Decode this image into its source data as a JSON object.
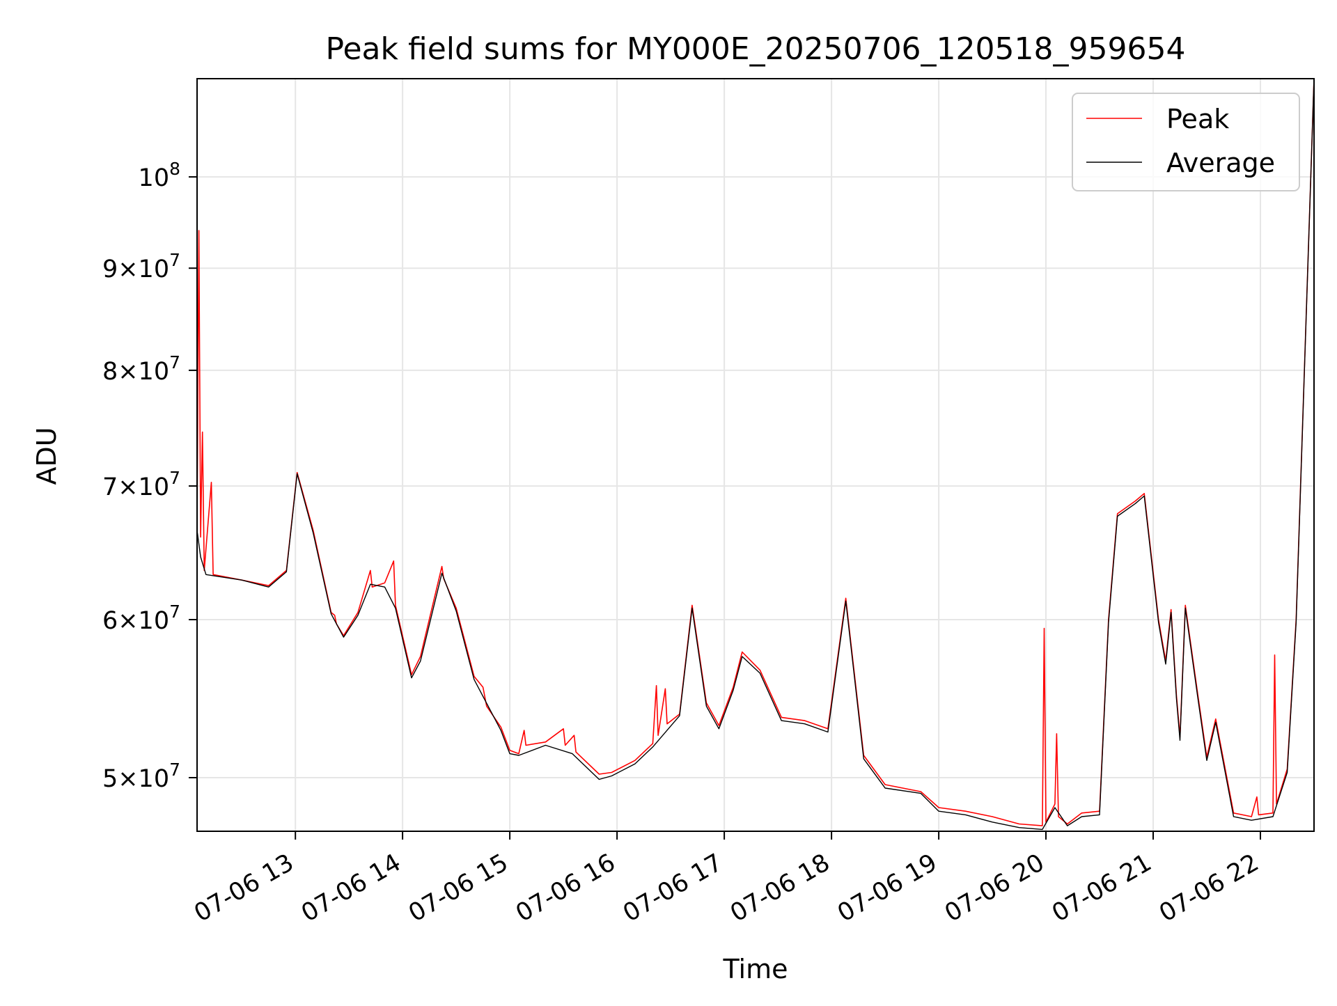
{
  "chart_data": {
    "type": "line",
    "title": "Peak field sums for MY000E_20250706_120518_959654",
    "xlabel": "Time",
    "ylabel": "ADU",
    "y_scale": "log",
    "grid": true,
    "legend_position": "top-right",
    "xlim": [
      "2025-07-06 12:05",
      "2025-07-06 22:30"
    ],
    "ylim": [
      47000000,
      112000000
    ],
    "x_ticks": [
      {
        "value": "2025-07-06 13:00",
        "label": "07-06 13"
      },
      {
        "value": "2025-07-06 14:00",
        "label": "07-06 14"
      },
      {
        "value": "2025-07-06 15:00",
        "label": "07-06 15"
      },
      {
        "value": "2025-07-06 16:00",
        "label": "07-06 16"
      },
      {
        "value": "2025-07-06 17:00",
        "label": "07-06 17"
      },
      {
        "value": "2025-07-06 18:00",
        "label": "07-06 18"
      },
      {
        "value": "2025-07-06 19:00",
        "label": "07-06 19"
      },
      {
        "value": "2025-07-06 20:00",
        "label": "07-06 20"
      },
      {
        "value": "2025-07-06 21:00",
        "label": "07-06 21"
      },
      {
        "value": "2025-07-06 22:00",
        "label": "07-06 22"
      }
    ],
    "y_ticks": [
      {
        "value": 50000000,
        "mantissa": "5",
        "exponent": "7"
      },
      {
        "value": 60000000,
        "mantissa": "6",
        "exponent": "7"
      },
      {
        "value": 70000000,
        "mantissa": "7",
        "exponent": "7"
      },
      {
        "value": 80000000,
        "mantissa": "8",
        "exponent": "7"
      },
      {
        "value": 90000000,
        "mantissa": "9",
        "exponent": "7"
      },
      {
        "value": 100000000,
        "mantissa": "",
        "exponent": "8"
      }
    ],
    "series": [
      {
        "name": "Peak",
        "color": "#ff0000",
        "points": [
          [
            "2025-07-06 12:05",
            67000000
          ],
          [
            "2025-07-06 12:06",
            94000000
          ],
          [
            "2025-07-06 12:07",
            66000000
          ],
          [
            "2025-07-06 12:08",
            74500000
          ],
          [
            "2025-07-06 12:09",
            63500000
          ],
          [
            "2025-07-06 12:13",
            70300000
          ],
          [
            "2025-07-06 12:14",
            63200000
          ],
          [
            "2025-07-06 12:30",
            62800000
          ],
          [
            "2025-07-06 12:45",
            62400000
          ],
          [
            "2025-07-06 12:55",
            63500000
          ],
          [
            "2025-07-06 13:01",
            71100000
          ],
          [
            "2025-07-06 13:10",
            66500000
          ],
          [
            "2025-07-06 13:20",
            60500000
          ],
          [
            "2025-07-06 13:22",
            60300000
          ],
          [
            "2025-07-06 13:23",
            59700000
          ],
          [
            "2025-07-06 13:27",
            58900000
          ],
          [
            "2025-07-06 13:35",
            60500000
          ],
          [
            "2025-07-06 13:42",
            63500000
          ],
          [
            "2025-07-06 13:43",
            62300000
          ],
          [
            "2025-07-06 13:50",
            62600000
          ],
          [
            "2025-07-06 13:55",
            64200000
          ],
          [
            "2025-07-06 13:56",
            61000000
          ],
          [
            "2025-07-06 14:05",
            56300000
          ],
          [
            "2025-07-06 14:10",
            57500000
          ],
          [
            "2025-07-06 14:22",
            63800000
          ],
          [
            "2025-07-06 14:23",
            62900000
          ],
          [
            "2025-07-06 14:30",
            60800000
          ],
          [
            "2025-07-06 14:40",
            56200000
          ],
          [
            "2025-07-06 14:45",
            55500000
          ],
          [
            "2025-07-06 14:47",
            54300000
          ],
          [
            "2025-07-06 14:55",
            53000000
          ],
          [
            "2025-07-06 15:00",
            51600000
          ],
          [
            "2025-07-06 15:05",
            51400000
          ],
          [
            "2025-07-06 15:08",
            52800000
          ],
          [
            "2025-07-06 15:09",
            51900000
          ],
          [
            "2025-07-06 15:20",
            52100000
          ],
          [
            "2025-07-06 15:30",
            52900000
          ],
          [
            "2025-07-06 15:31",
            51900000
          ],
          [
            "2025-07-06 15:36",
            52500000
          ],
          [
            "2025-07-06 15:37",
            51500000
          ],
          [
            "2025-07-06 15:50",
            50200000
          ],
          [
            "2025-07-06 15:57",
            50300000
          ],
          [
            "2025-07-06 16:10",
            51000000
          ],
          [
            "2025-07-06 16:20",
            52000000
          ],
          [
            "2025-07-06 16:22",
            55600000
          ],
          [
            "2025-07-06 16:23",
            52500000
          ],
          [
            "2025-07-06 16:27",
            55400000
          ],
          [
            "2025-07-06 16:28",
            53200000
          ],
          [
            "2025-07-06 16:35",
            53800000
          ],
          [
            "2025-07-06 16:42",
            61000000
          ],
          [
            "2025-07-06 16:50",
            54500000
          ],
          [
            "2025-07-06 16:57",
            53100000
          ],
          [
            "2025-07-06 17:05",
            55500000
          ],
          [
            "2025-07-06 17:10",
            57800000
          ],
          [
            "2025-07-06 17:20",
            56600000
          ],
          [
            "2025-07-06 17:32",
            53600000
          ],
          [
            "2025-07-06 17:45",
            53400000
          ],
          [
            "2025-07-06 17:58",
            52900000
          ],
          [
            "2025-07-06 18:08",
            61500000
          ],
          [
            "2025-07-06 18:18",
            51300000
          ],
          [
            "2025-07-06 18:30",
            49600000
          ],
          [
            "2025-07-06 18:50",
            49200000
          ],
          [
            "2025-07-06 19:00",
            48300000
          ],
          [
            "2025-07-06 19:15",
            48100000
          ],
          [
            "2025-07-06 19:30",
            47800000
          ],
          [
            "2025-07-06 19:45",
            47400000
          ],
          [
            "2025-07-06 19:58",
            47300000
          ],
          [
            "2025-07-06 19:59",
            59400000
          ],
          [
            "2025-07-06 20:00",
            47500000
          ],
          [
            "2025-07-06 20:05",
            48500000
          ],
          [
            "2025-07-06 20:06",
            52600000
          ],
          [
            "2025-07-06 20:07",
            47800000
          ],
          [
            "2025-07-06 20:12",
            47400000
          ],
          [
            "2025-07-06 20:20",
            48000000
          ],
          [
            "2025-07-06 20:30",
            48100000
          ],
          [
            "2025-07-06 20:35",
            60000000
          ],
          [
            "2025-07-06 20:40",
            67800000
          ],
          [
            "2025-07-06 20:50",
            68800000
          ],
          [
            "2025-07-06 20:55",
            69400000
          ],
          [
            "2025-07-06 21:03",
            60000000
          ],
          [
            "2025-07-06 21:07",
            57200000
          ],
          [
            "2025-07-06 21:10",
            60700000
          ],
          [
            "2025-07-06 21:13",
            55000000
          ],
          [
            "2025-07-06 21:15",
            52400000
          ],
          [
            "2025-07-06 21:18",
            61000000
          ],
          [
            "2025-07-06 21:25",
            55000000
          ],
          [
            "2025-07-06 21:30",
            51200000
          ],
          [
            "2025-07-06 21:35",
            53500000
          ],
          [
            "2025-07-06 21:45",
            48000000
          ],
          [
            "2025-07-06 21:55",
            47800000
          ],
          [
            "2025-07-06 21:58",
            48900000
          ],
          [
            "2025-07-06 21:59",
            47900000
          ],
          [
            "2025-07-06 22:07",
            48000000
          ],
          [
            "2025-07-06 22:08",
            57600000
          ],
          [
            "2025-07-06 22:09",
            48500000
          ],
          [
            "2025-07-06 22:15",
            50500000
          ],
          [
            "2025-07-06 22:20",
            60000000
          ],
          [
            "2025-07-06 22:30",
            112000000
          ]
        ]
      },
      {
        "name": "Average",
        "color": "#000000",
        "points": [
          [
            "2025-07-06 12:05",
            66500000
          ],
          [
            "2025-07-06 12:07",
            64500000
          ],
          [
            "2025-07-06 12:10",
            63200000
          ],
          [
            "2025-07-06 12:30",
            62800000
          ],
          [
            "2025-07-06 12:45",
            62300000
          ],
          [
            "2025-07-06 12:55",
            63400000
          ],
          [
            "2025-07-06 13:01",
            71000000
          ],
          [
            "2025-07-06 13:10",
            66300000
          ],
          [
            "2025-07-06 13:20",
            60400000
          ],
          [
            "2025-07-06 13:27",
            58800000
          ],
          [
            "2025-07-06 13:35",
            60300000
          ],
          [
            "2025-07-06 13:42",
            62500000
          ],
          [
            "2025-07-06 13:50",
            62300000
          ],
          [
            "2025-07-06 13:56",
            60800000
          ],
          [
            "2025-07-06 14:05",
            56100000
          ],
          [
            "2025-07-06 14:10",
            57200000
          ],
          [
            "2025-07-06 14:22",
            63300000
          ],
          [
            "2025-07-06 14:30",
            60600000
          ],
          [
            "2025-07-06 14:40",
            56000000
          ],
          [
            "2025-07-06 14:55",
            52800000
          ],
          [
            "2025-07-06 15:00",
            51400000
          ],
          [
            "2025-07-06 15:05",
            51300000
          ],
          [
            "2025-07-06 15:20",
            51900000
          ],
          [
            "2025-07-06 15:35",
            51400000
          ],
          [
            "2025-07-06 15:50",
            49900000
          ],
          [
            "2025-07-06 15:57",
            50100000
          ],
          [
            "2025-07-06 16:10",
            50800000
          ],
          [
            "2025-07-06 16:20",
            51800000
          ],
          [
            "2025-07-06 16:35",
            53700000
          ],
          [
            "2025-07-06 16:42",
            60800000
          ],
          [
            "2025-07-06 16:50",
            54300000
          ],
          [
            "2025-07-06 16:57",
            52900000
          ],
          [
            "2025-07-06 17:05",
            55300000
          ],
          [
            "2025-07-06 17:10",
            57500000
          ],
          [
            "2025-07-06 17:20",
            56400000
          ],
          [
            "2025-07-06 17:32",
            53400000
          ],
          [
            "2025-07-06 17:45",
            53200000
          ],
          [
            "2025-07-06 17:58",
            52700000
          ],
          [
            "2025-07-06 18:08",
            61300000
          ],
          [
            "2025-07-06 18:18",
            51100000
          ],
          [
            "2025-07-06 18:30",
            49400000
          ],
          [
            "2025-07-06 18:50",
            49100000
          ],
          [
            "2025-07-06 19:00",
            48100000
          ],
          [
            "2025-07-06 19:15",
            47900000
          ],
          [
            "2025-07-06 19:30",
            47500000
          ],
          [
            "2025-07-06 19:45",
            47200000
          ],
          [
            "2025-07-06 19:58",
            47100000
          ],
          [
            "2025-07-06 20:05",
            48300000
          ],
          [
            "2025-07-06 20:12",
            47300000
          ],
          [
            "2025-07-06 20:20",
            47800000
          ],
          [
            "2025-07-06 20:30",
            47900000
          ],
          [
            "2025-07-06 20:35",
            59800000
          ],
          [
            "2025-07-06 20:40",
            67600000
          ],
          [
            "2025-07-06 20:50",
            68600000
          ],
          [
            "2025-07-06 20:55",
            69200000
          ],
          [
            "2025-07-06 21:03",
            59800000
          ],
          [
            "2025-07-06 21:07",
            57000000
          ],
          [
            "2025-07-06 21:10",
            60500000
          ],
          [
            "2025-07-06 21:13",
            54800000
          ],
          [
            "2025-07-06 21:15",
            52200000
          ],
          [
            "2025-07-06 21:18",
            60800000
          ],
          [
            "2025-07-06 21:25",
            54800000
          ],
          [
            "2025-07-06 21:30",
            51000000
          ],
          [
            "2025-07-06 21:35",
            53300000
          ],
          [
            "2025-07-06 21:45",
            47800000
          ],
          [
            "2025-07-06 21:55",
            47600000
          ],
          [
            "2025-07-06 22:07",
            47800000
          ],
          [
            "2025-07-06 22:15",
            50300000
          ],
          [
            "2025-07-06 22:20",
            59800000
          ],
          [
            "2025-07-06 22:30",
            112000000
          ]
        ]
      }
    ]
  }
}
